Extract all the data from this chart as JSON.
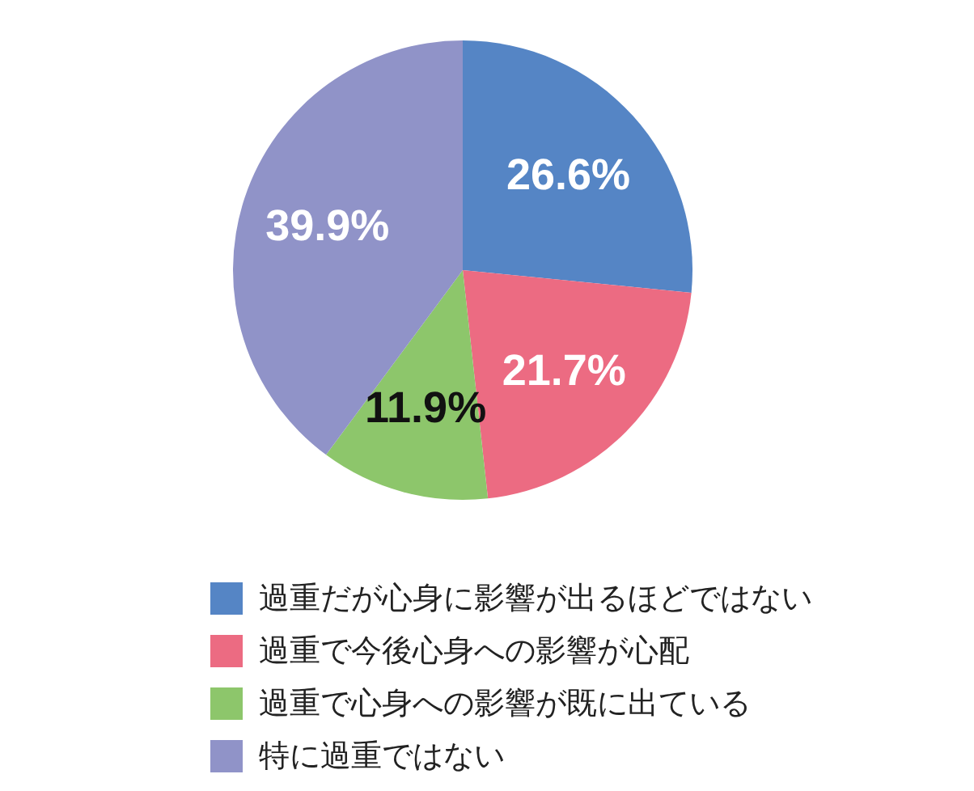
{
  "chart_data": {
    "type": "pie",
    "categories": [
      "過重だが心身に影響が出るほどではない",
      "過重で今後心身への影響が心配",
      "過重で心身への影響が既に出ている",
      "特に過重ではない"
    ],
    "values": [
      26.6,
      21.7,
      11.9,
      39.9
    ],
    "colors": [
      "#5585c5",
      "#ec6b82",
      "#8dc66b",
      "#9093c8"
    ],
    "value_labels": [
      "26.6%",
      "21.7%",
      "11.9%",
      "39.9%"
    ],
    "legend": "bottom"
  }
}
